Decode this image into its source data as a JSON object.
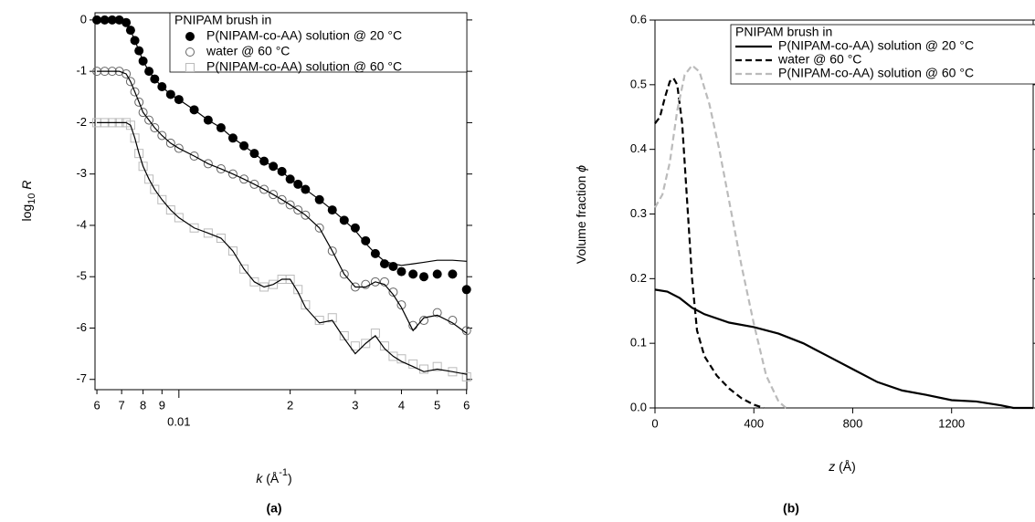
{
  "chart_data": [
    {
      "type": "scatter",
      "panel_label": "(a)",
      "xlabel": {
        "var": "k",
        "open": " (Å",
        "sup": "-1",
        "close": ")"
      },
      "ylabel": {
        "pre": "log",
        "sub": "10",
        "var": "R"
      },
      "xscale": "log",
      "xlim": [
        0.00593,
        0.0601
      ],
      "xticks": [
        {
          "value": 0.006,
          "label": "6"
        },
        {
          "value": 0.007,
          "label": "7"
        },
        {
          "value": 0.008,
          "label": "8"
        },
        {
          "value": 0.009,
          "label": "9"
        },
        0.01,
        {
          "value": 0.02,
          "label": "2"
        },
        {
          "value": 0.03,
          "label": "3"
        },
        {
          "value": 0.04,
          "label": "4"
        },
        {
          "value": 0.05,
          "label": "5"
        },
        {
          "value": 0.06,
          "label": "6"
        }
      ],
      "ylim": [
        -7.2,
        0.14
      ],
      "yticks": [
        0,
        -1,
        -2,
        -3,
        -4,
        -5,
        -6,
        -7
      ],
      "legend": {
        "title": "PNIPAM brush in",
        "position": "upper right"
      },
      "x": [
        0.006,
        0.0063,
        0.0066,
        0.0069,
        0.0072,
        0.0074,
        0.0076,
        0.0078,
        0.008,
        0.0083,
        0.0086,
        0.009,
        0.0095,
        0.01,
        0.011,
        0.012,
        0.013,
        0.014,
        0.015,
        0.016,
        0.017,
        0.018,
        0.019,
        0.02,
        0.021,
        0.022,
        0.024,
        0.026,
        0.028,
        0.03,
        0.032,
        0.034,
        0.036,
        0.038,
        0.04,
        0.043,
        0.046,
        0.05,
        0.055,
        0.06
      ],
      "fit_color": "#000000",
      "series": [
        {
          "name": "P(NIPAM-co-AA) solution @ 20 °C",
          "marker": "filled-circle",
          "color": "#000000",
          "values": [
            0,
            0,
            0,
            0,
            -0.05,
            -0.2,
            -0.4,
            -0.6,
            -0.8,
            -1.0,
            -1.15,
            -1.3,
            -1.45,
            -1.55,
            -1.75,
            -1.95,
            -2.1,
            -2.3,
            -2.45,
            -2.6,
            -2.75,
            -2.85,
            -2.95,
            -3.1,
            -3.2,
            -3.3,
            -3.5,
            -3.7,
            -3.9,
            -4.05,
            -4.3,
            -4.55,
            -4.75,
            -4.8,
            -4.9,
            -4.95,
            -5.0,
            -4.95,
            -4.95,
            -5.25
          ],
          "fit_values": [
            0,
            0,
            0,
            0,
            -0.05,
            -0.2,
            -0.4,
            -0.6,
            -0.8,
            -1.0,
            -1.15,
            -1.3,
            -1.45,
            -1.55,
            -1.75,
            -1.95,
            -2.1,
            -2.3,
            -2.45,
            -2.6,
            -2.75,
            -2.85,
            -2.95,
            -3.1,
            -3.2,
            -3.3,
            -3.5,
            -3.7,
            -3.9,
            -4.1,
            -4.35,
            -4.55,
            -4.7,
            -4.75,
            -4.78,
            -4.75,
            -4.72,
            -4.68,
            -4.68,
            -4.7
          ]
        },
        {
          "name": "water @ 60 °C",
          "marker": "open-circle",
          "color": "#666666",
          "values": [
            -1,
            -1,
            -1,
            -1,
            -1.05,
            -1.2,
            -1.4,
            -1.6,
            -1.8,
            -1.95,
            -2.1,
            -2.25,
            -2.4,
            -2.5,
            -2.65,
            -2.8,
            -2.9,
            -3.0,
            -3.1,
            -3.2,
            -3.3,
            -3.4,
            -3.5,
            -3.6,
            -3.7,
            -3.8,
            -4.05,
            -4.5,
            -4.95,
            -5.2,
            -5.15,
            -5.1,
            -5.1,
            -5.3,
            -5.55,
            -5.95,
            -5.85,
            -5.7,
            -5.85,
            -6.05
          ],
          "fit_values": [
            -1,
            -1,
            -1,
            -1,
            -1.05,
            -1.2,
            -1.4,
            -1.6,
            -1.8,
            -1.95,
            -2.1,
            -2.25,
            -2.4,
            -2.5,
            -2.65,
            -2.8,
            -2.9,
            -3.0,
            -3.1,
            -3.2,
            -3.3,
            -3.4,
            -3.5,
            -3.6,
            -3.7,
            -3.8,
            -4.05,
            -4.5,
            -4.95,
            -5.2,
            -5.2,
            -5.1,
            -5.15,
            -5.35,
            -5.6,
            -6.05,
            -5.8,
            -5.75,
            -5.9,
            -6.1
          ]
        },
        {
          "name": "P(NIPAM-co-AA) solution @ 60 °C",
          "marker": "open-square",
          "color": "#bbbbbb",
          "values": [
            -2,
            -2,
            -2,
            -2,
            -2.0,
            -2.05,
            -2.3,
            -2.6,
            -2.85,
            -3.1,
            -3.3,
            -3.5,
            -3.7,
            -3.85,
            -4.05,
            -4.15,
            -4.25,
            -4.5,
            -4.85,
            -5.1,
            -5.2,
            -5.15,
            -5.05,
            -5.05,
            -5.25,
            -5.55,
            -5.85,
            -5.8,
            -6.15,
            -6.35,
            -6.3,
            -6.1,
            -6.35,
            -6.55,
            -6.6,
            -6.7,
            -6.8,
            -6.75,
            -6.85,
            -6.95
          ],
          "fit_values": [
            -2,
            -2,
            -2,
            -2,
            -2.0,
            -2.05,
            -2.3,
            -2.6,
            -2.85,
            -3.1,
            -3.3,
            -3.5,
            -3.7,
            -3.85,
            -4.05,
            -4.15,
            -4.25,
            -4.5,
            -4.85,
            -5.1,
            -5.2,
            -5.15,
            -5.05,
            -5.05,
            -5.3,
            -5.6,
            -5.9,
            -5.85,
            -6.2,
            -6.5,
            -6.3,
            -6.15,
            -6.4,
            -6.55,
            -6.65,
            -6.75,
            -6.85,
            -6.8,
            -6.85,
            -6.9
          ]
        }
      ]
    },
    {
      "type": "line",
      "panel_label": "(b)",
      "xlabel": {
        "var": "z",
        "open": " (Å)"
      },
      "ylabel": {
        "pre": "Volume fraction ",
        "var": "ϕ"
      },
      "xlim": [
        0,
        1530
      ],
      "xticks": [
        0,
        400,
        800,
        1200
      ],
      "ylim": [
        0,
        0.6
      ],
      "yticks": [
        {
          "value": 0,
          "label": "0.0"
        },
        0.1,
        0.2,
        0.3,
        0.4,
        0.5,
        0.6
      ],
      "legend": {
        "title": "PNIPAM brush in",
        "position": "upper right"
      },
      "series": [
        {
          "name": "P(NIPAM-co-AA) solution @ 20 °C",
          "color": "#000000",
          "dash": "solid",
          "x": [
            0,
            50,
            100,
            150,
            200,
            300,
            400,
            500,
            600,
            700,
            800,
            900,
            1000,
            1100,
            1200,
            1300,
            1400,
            1450,
            1530
          ],
          "values": [
            0.183,
            0.18,
            0.17,
            0.155,
            0.145,
            0.132,
            0.125,
            0.115,
            0.1,
            0.08,
            0.06,
            0.04,
            0.027,
            0.02,
            0.012,
            0.01,
            0.004,
            0,
            0
          ]
        },
        {
          "name": "water @ 60 °C",
          "color": "#000000",
          "dash": "dashed",
          "x": [
            0,
            20,
            40,
            60,
            75,
            90,
            110,
            130,
            150,
            170,
            200,
            250,
            300,
            350,
            400,
            440
          ],
          "values": [
            0.44,
            0.45,
            0.48,
            0.505,
            0.51,
            0.5,
            0.44,
            0.32,
            0.2,
            0.12,
            0.08,
            0.05,
            0.03,
            0.015,
            0.005,
            0
          ]
        },
        {
          "name": "P(NIPAM-co-AA) solution @ 60 °C",
          "color": "#bbbbbb",
          "dash": "dashed",
          "x": [
            0,
            30,
            60,
            90,
            120,
            150,
            180,
            220,
            260,
            300,
            350,
            400,
            450,
            500,
            530
          ],
          "values": [
            0.31,
            0.33,
            0.38,
            0.46,
            0.515,
            0.53,
            0.52,
            0.47,
            0.4,
            0.32,
            0.22,
            0.13,
            0.05,
            0.01,
            0
          ]
        }
      ]
    }
  ]
}
